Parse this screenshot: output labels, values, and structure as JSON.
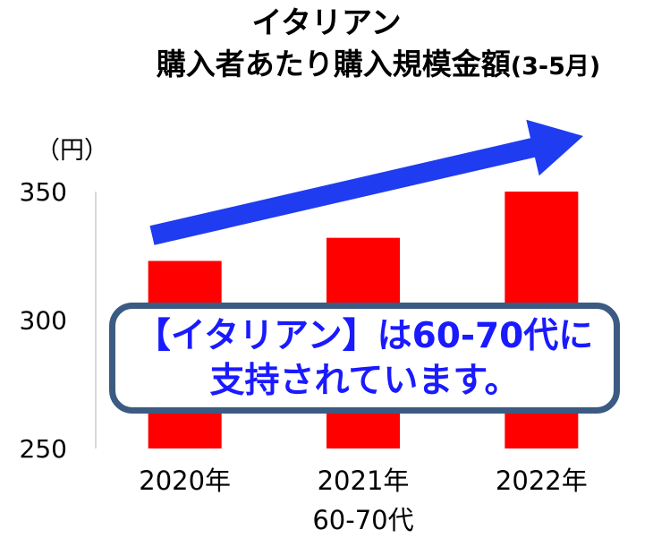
{
  "chart_data": {
    "type": "bar",
    "title": "イタリアン",
    "subtitle": "購入者あたり購入規模金額",
    "subtitle_suffix": "(3-5月)",
    "y_unit": "（円）",
    "categories": [
      "2020年",
      "2021年",
      "2022年"
    ],
    "series": [
      {
        "values": [
          323,
          332,
          350
        ],
        "color": "#ff0000"
      }
    ],
    "ylim": [
      250,
      350
    ],
    "yticks": [
      250,
      300,
      350
    ],
    "xlabel": "60-70代",
    "grid": false,
    "legend": "none",
    "annotation": {
      "type": "trend-arrow",
      "direction": "up",
      "color": "#1f3cf0"
    }
  },
  "callout": {
    "line1": "【イタリアン】は60-70代に",
    "line2": "支持されています。",
    "text_color": "#1a1aff",
    "border_color": "#3b5b82"
  }
}
